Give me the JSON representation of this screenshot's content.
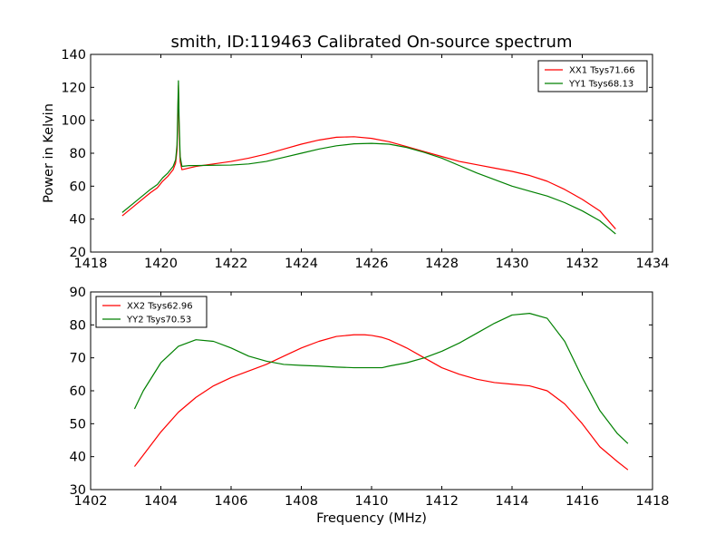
{
  "chart_data": [
    {
      "type": "line",
      "title": "smith, ID:119463 Calibrated On-source spectrum",
      "xlabel": "",
      "ylabel": "Power in Kelvin",
      "xlim": [
        1418,
        1434
      ],
      "ylim": [
        20,
        140
      ],
      "xticks": [
        "1418",
        "1420",
        "1422",
        "1424",
        "1426",
        "1428",
        "1430",
        "1432",
        "1434"
      ],
      "yticks": [
        "20",
        "40",
        "60",
        "80",
        "100",
        "120",
        "140"
      ],
      "legend_position": "top-right",
      "grid": false,
      "series": [
        {
          "name": "XX1 Tsys71.66",
          "color": "#ff0000",
          "x": [
            1418.9,
            1419.3,
            1419.7,
            1419.9,
            1420.05,
            1420.2,
            1420.35,
            1420.42,
            1420.46,
            1420.48,
            1420.5,
            1420.52,
            1420.55,
            1420.6,
            1420.8,
            1421.0,
            1421.5,
            1422.0,
            1422.5,
            1423.0,
            1423.5,
            1424.0,
            1424.5,
            1425.0,
            1425.5,
            1426.0,
            1426.5,
            1427.0,
            1427.5,
            1428.0,
            1428.5,
            1429.0,
            1429.5,
            1430.0,
            1430.5,
            1431.0,
            1431.5,
            1432.0,
            1432.5,
            1432.95
          ],
          "y": [
            42,
            49,
            56,
            59,
            63,
            66,
            70,
            74,
            82,
            100,
            121,
            95,
            75,
            70,
            71,
            72,
            73.5,
            75,
            77,
            79.5,
            82.5,
            85.5,
            88,
            89.7,
            90,
            89,
            87,
            84,
            81,
            78,
            75,
            73,
            71,
            69,
            66.5,
            63,
            58,
            52,
            45,
            34
          ]
        },
        {
          "name": "YY1 Tsys68.13",
          "color": "#008000",
          "x": [
            1418.9,
            1419.3,
            1419.7,
            1419.9,
            1420.05,
            1420.2,
            1420.35,
            1420.42,
            1420.46,
            1420.48,
            1420.5,
            1420.52,
            1420.55,
            1420.6,
            1420.8,
            1421.0,
            1421.5,
            1422.0,
            1422.5,
            1423.0,
            1423.5,
            1424.0,
            1424.5,
            1425.0,
            1425.5,
            1426.0,
            1426.5,
            1427.0,
            1427.5,
            1428.0,
            1428.5,
            1429.0,
            1429.5,
            1430.0,
            1430.5,
            1431.0,
            1431.5,
            1432.0,
            1432.5,
            1432.95
          ],
          "y": [
            44,
            51,
            58,
            61,
            65,
            68,
            72,
            76,
            85,
            105,
            124,
            100,
            78,
            72,
            72.5,
            72.5,
            72.7,
            72.8,
            73.5,
            75,
            77.5,
            80,
            82.5,
            84.5,
            85.7,
            86,
            85.5,
            83.5,
            80.5,
            77,
            72.5,
            68,
            64,
            60,
            57,
            54,
            50,
            45,
            39,
            31
          ]
        }
      ]
    },
    {
      "type": "line",
      "title": "",
      "xlabel": "Frequency (MHz)",
      "ylabel": "",
      "xlim": [
        1402,
        1418
      ],
      "ylim": [
        30,
        90
      ],
      "xticks": [
        "1402",
        "1404",
        "1406",
        "1408",
        "1410",
        "1412",
        "1414",
        "1416",
        "1418"
      ],
      "yticks": [
        "30",
        "40",
        "50",
        "60",
        "70",
        "80",
        "90"
      ],
      "legend_position": "top-left",
      "grid": false,
      "series": [
        {
          "name": "XX2 Tsys62.96",
          "color": "#ff0000",
          "x": [
            1403.25,
            1403.5,
            1404.0,
            1404.5,
            1405.0,
            1405.5,
            1406.0,
            1406.5,
            1407.0,
            1407.5,
            1408.0,
            1408.5,
            1409.0,
            1409.5,
            1409.8,
            1410.0,
            1410.3,
            1410.5,
            1411.0,
            1411.5,
            1412.0,
            1412.5,
            1413.0,
            1413.5,
            1414.0,
            1414.5,
            1415.0,
            1415.5,
            1416.0,
            1416.5,
            1417.0,
            1417.3
          ],
          "y": [
            37,
            40.5,
            47.5,
            53.5,
            58,
            61.5,
            64,
            66,
            68,
            70.5,
            73,
            75,
            76.5,
            77,
            77,
            76.8,
            76.2,
            75.5,
            73,
            70,
            67,
            65,
            63.5,
            62.5,
            62,
            61.5,
            60,
            56,
            50,
            43,
            38.5,
            36
          ]
        },
        {
          "name": "YY2 Tsys70.53",
          "color": "#008000",
          "x": [
            1403.25,
            1403.5,
            1404.0,
            1404.5,
            1405.0,
            1405.5,
            1406.0,
            1406.5,
            1407.0,
            1407.5,
            1408.0,
            1408.5,
            1409.0,
            1409.5,
            1409.8,
            1410.0,
            1410.3,
            1410.5,
            1411.0,
            1411.5,
            1412.0,
            1412.5,
            1413.0,
            1413.5,
            1414.0,
            1414.5,
            1415.0,
            1415.5,
            1416.0,
            1416.5,
            1417.0,
            1417.3
          ],
          "y": [
            54.5,
            60,
            68.5,
            73.5,
            75.5,
            75,
            73,
            70.5,
            69,
            68,
            67.7,
            67.5,
            67.2,
            67,
            67,
            67,
            67,
            67.5,
            68.5,
            70,
            72,
            74.5,
            77.5,
            80.5,
            83,
            83.5,
            82,
            75,
            64,
            54,
            47,
            44
          ]
        }
      ]
    }
  ]
}
